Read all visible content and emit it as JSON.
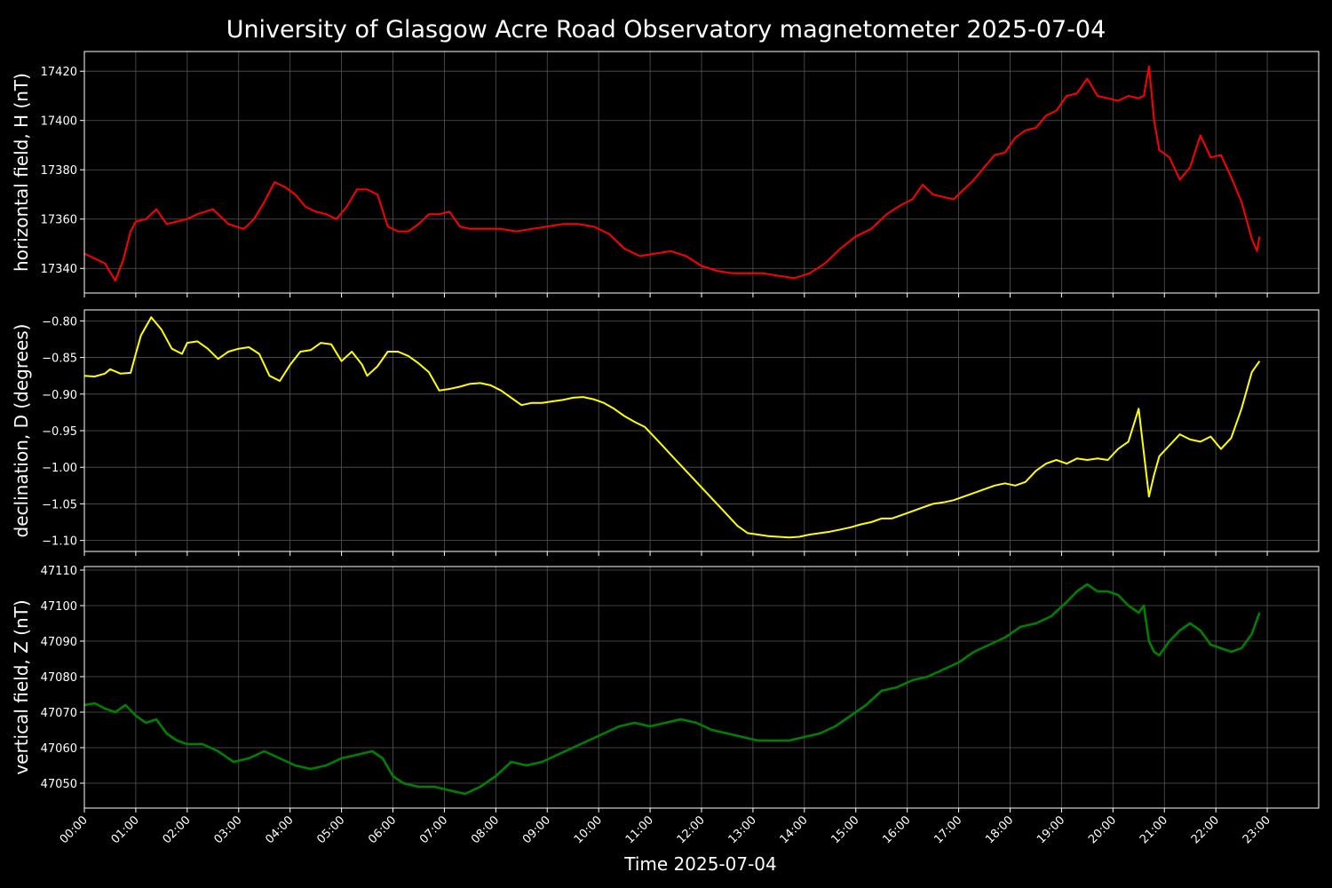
{
  "chart_data": {
    "type": "line",
    "title": "University of Glasgow Acre Road Observatory magnetometer 2025-07-04",
    "xlabel": "Time 2025-07-04",
    "x_unit": "hours",
    "xlim": [
      0,
      24
    ],
    "x_ticks": [
      "00:00",
      "01:00",
      "02:00",
      "03:00",
      "04:00",
      "05:00",
      "06:00",
      "07:00",
      "08:00",
      "09:00",
      "10:00",
      "11:00",
      "12:00",
      "13:00",
      "14:00",
      "15:00",
      "16:00",
      "17:00",
      "18:00",
      "19:00",
      "20:00",
      "21:00",
      "22:00",
      "23:00"
    ],
    "grid": true,
    "panels": [
      {
        "ylabel": "horizontal field, H (nT)",
        "color": "#ff0000",
        "ylim": [
          17330,
          17428
        ],
        "y_ticks": [
          17340,
          17360,
          17380,
          17400,
          17420
        ],
        "x": [
          0,
          0.2,
          0.4,
          0.6,
          0.75,
          0.9,
          1.0,
          1.2,
          1.4,
          1.6,
          1.8,
          2.0,
          2.2,
          2.5,
          2.8,
          3.1,
          3.3,
          3.5,
          3.7,
          3.9,
          4.1,
          4.3,
          4.5,
          4.7,
          4.9,
          5.1,
          5.3,
          5.5,
          5.7,
          5.9,
          6.1,
          6.3,
          6.5,
          6.7,
          6.9,
          7.1,
          7.3,
          7.5,
          7.7,
          7.9,
          8.1,
          8.4,
          8.7,
          9.0,
          9.3,
          9.6,
          9.9,
          10.2,
          10.5,
          10.8,
          11.1,
          11.4,
          11.7,
          12.0,
          12.3,
          12.6,
          12.9,
          13.2,
          13.5,
          13.8,
          14.1,
          14.4,
          14.7,
          15.0,
          15.3,
          15.6,
          15.9,
          16.1,
          16.3,
          16.5,
          16.7,
          16.9,
          17.1,
          17.3,
          17.5,
          17.7,
          17.9,
          18.1,
          18.3,
          18.5,
          18.7,
          18.9,
          19.1,
          19.3,
          19.5,
          19.7,
          19.9,
          20.1,
          20.3,
          20.5,
          20.6,
          20.7,
          20.8,
          20.9,
          21.1,
          21.3,
          21.5,
          21.7,
          21.9,
          22.1,
          22.3,
          22.5,
          22.7,
          22.8,
          22.85
        ],
        "values": [
          17346,
          17344,
          17342,
          17335,
          17343,
          17355,
          17359,
          17360,
          17364,
          17358,
          17359,
          17360,
          17362,
          17364,
          17358,
          17356,
          17360,
          17367,
          17375,
          17373,
          17370,
          17365,
          17363,
          17362,
          17360,
          17365,
          17372,
          17372,
          17370,
          17357,
          17355,
          17355,
          17358,
          17362,
          17362,
          17363,
          17357,
          17356,
          17356,
          17356,
          17356,
          17355,
          17356,
          17357,
          17358,
          17358,
          17357,
          17354,
          17348,
          17345,
          17346,
          17347,
          17345,
          17341,
          17339,
          17338,
          17338,
          17338,
          17337,
          17336,
          17338,
          17342,
          17348,
          17353,
          17356,
          17362,
          17366,
          17368,
          17374,
          17370,
          17369,
          17368,
          17372,
          17376,
          17381,
          17386,
          17387,
          17393,
          17396,
          17397,
          17402,
          17404,
          17410,
          17411,
          17417,
          17410,
          17409,
          17408,
          17410,
          17409,
          17410,
          17422,
          17400,
          17388,
          17385,
          17376,
          17381,
          17394,
          17385,
          17386,
          17377,
          17367,
          17352,
          17347,
          17353
        ]
      },
      {
        "ylabel": "declination, D (degrees)",
        "color": "#ffff00",
        "ylim": [
          -1.115,
          -0.785
        ],
        "y_ticks": [
          -1.1,
          -1.05,
          -1.0,
          -0.95,
          -0.9,
          -0.85,
          -0.8
        ],
        "y_tick_labels": [
          "−1.10",
          "−1.05",
          "−1.00",
          "−0.95",
          "−0.90",
          "−0.85",
          "−0.80"
        ],
        "x": [
          0,
          0.2,
          0.4,
          0.5,
          0.7,
          0.9,
          1.0,
          1.1,
          1.3,
          1.5,
          1.7,
          1.9,
          2.0,
          2.2,
          2.4,
          2.6,
          2.8,
          3.0,
          3.2,
          3.4,
          3.6,
          3.8,
          4.0,
          4.2,
          4.4,
          4.6,
          4.8,
          5.0,
          5.2,
          5.4,
          5.5,
          5.7,
          5.9,
          6.1,
          6.3,
          6.5,
          6.7,
          6.9,
          7.1,
          7.3,
          7.5,
          7.7,
          7.9,
          8.1,
          8.3,
          8.5,
          8.7,
          8.9,
          9.1,
          9.3,
          9.5,
          9.7,
          9.9,
          10.1,
          10.3,
          10.5,
          10.7,
          10.9,
          11.1,
          11.3,
          11.5,
          11.7,
          11.9,
          12.1,
          12.3,
          12.5,
          12.7,
          12.9,
          13.1,
          13.3,
          13.5,
          13.7,
          13.9,
          14.1,
          14.3,
          14.5,
          14.7,
          14.9,
          15.1,
          15.3,
          15.5,
          15.7,
          15.9,
          16.1,
          16.3,
          16.5,
          16.7,
          16.9,
          17.1,
          17.3,
          17.5,
          17.7,
          17.9,
          18.1,
          18.3,
          18.5,
          18.7,
          18.9,
          19.1,
          19.3,
          19.5,
          19.7,
          19.9,
          20.1,
          20.3,
          20.5,
          20.6,
          20.7,
          20.8,
          20.9,
          21.1,
          21.3,
          21.5,
          21.7,
          21.9,
          22.1,
          22.3,
          22.5,
          22.7,
          22.85
        ],
        "values": [
          -0.875,
          -0.876,
          -0.872,
          -0.866,
          -0.872,
          -0.871,
          -0.845,
          -0.82,
          -0.795,
          -0.812,
          -0.838,
          -0.845,
          -0.83,
          -0.828,
          -0.838,
          -0.852,
          -0.842,
          -0.838,
          -0.836,
          -0.845,
          -0.875,
          -0.882,
          -0.86,
          -0.842,
          -0.84,
          -0.83,
          -0.832,
          -0.855,
          -0.842,
          -0.86,
          -0.875,
          -0.862,
          -0.842,
          -0.842,
          -0.848,
          -0.858,
          -0.87,
          -0.895,
          -0.893,
          -0.89,
          -0.886,
          -0.885,
          -0.888,
          -0.895,
          -0.905,
          -0.915,
          -0.912,
          -0.912,
          -0.91,
          -0.908,
          -0.905,
          -0.904,
          -0.907,
          -0.912,
          -0.92,
          -0.93,
          -0.938,
          -0.945,
          -0.96,
          -0.975,
          -0.99,
          -1.005,
          -1.02,
          -1.035,
          -1.05,
          -1.065,
          -1.08,
          -1.09,
          -1.092,
          -1.094,
          -1.095,
          -1.096,
          -1.095,
          -1.092,
          -1.09,
          -1.088,
          -1.085,
          -1.082,
          -1.078,
          -1.075,
          -1.07,
          -1.07,
          -1.065,
          -1.06,
          -1.055,
          -1.05,
          -1.048,
          -1.045,
          -1.04,
          -1.035,
          -1.03,
          -1.025,
          -1.022,
          -1.025,
          -1.02,
          -1.005,
          -0.995,
          -0.99,
          -0.995,
          -0.988,
          -0.99,
          -0.988,
          -0.99,
          -0.975,
          -0.965,
          -0.92,
          -0.98,
          -1.04,
          -1.01,
          -0.985,
          -0.97,
          -0.955,
          -0.962,
          -0.965,
          -0.958,
          -0.975,
          -0.96,
          -0.92,
          -0.87,
          -0.855
        ]
      },
      {
        "ylabel": "vertical field, Z (nT)",
        "color": "#008000",
        "ylim": [
          47043,
          47111
        ],
        "y_ticks": [
          47050,
          47060,
          47070,
          47080,
          47090,
          47100,
          47110
        ],
        "x": [
          0,
          0.2,
          0.4,
          0.6,
          0.8,
          1.0,
          1.2,
          1.4,
          1.6,
          1.8,
          2.0,
          2.3,
          2.6,
          2.9,
          3.2,
          3.5,
          3.8,
          4.1,
          4.4,
          4.7,
          5.0,
          5.3,
          5.6,
          5.8,
          6.0,
          6.2,
          6.5,
          6.8,
          7.1,
          7.4,
          7.7,
          8.0,
          8.3,
          8.6,
          8.9,
          9.2,
          9.5,
          9.8,
          10.1,
          10.4,
          10.7,
          11.0,
          11.3,
          11.6,
          11.9,
          12.2,
          12.5,
          12.8,
          13.1,
          13.4,
          13.7,
          14.0,
          14.3,
          14.6,
          14.9,
          15.2,
          15.5,
          15.8,
          16.1,
          16.4,
          16.7,
          17.0,
          17.3,
          17.6,
          17.9,
          18.2,
          18.5,
          18.8,
          19.1,
          19.3,
          19.5,
          19.7,
          19.9,
          20.1,
          20.3,
          20.5,
          20.6,
          20.7,
          20.8,
          20.9,
          21.1,
          21.3,
          21.5,
          21.7,
          21.9,
          22.1,
          22.3,
          22.5,
          22.7,
          22.85
        ],
        "values": [
          47072,
          47072.5,
          47071,
          47070,
          47072,
          47069,
          47067,
          47068,
          47064,
          47062,
          47061,
          47061,
          47059,
          47056,
          47057,
          47059,
          47057,
          47055,
          47054,
          47055,
          47057,
          47058,
          47059,
          47057,
          47052,
          47050,
          47049,
          47049,
          47048,
          47047,
          47049,
          47052,
          47056,
          47055,
          47056,
          47058,
          47060,
          47062,
          47064,
          47066,
          47067,
          47066,
          47067,
          47068,
          47067,
          47065,
          47064,
          47063,
          47062,
          47062,
          47062,
          47063,
          47064,
          47066,
          47069,
          47072,
          47076,
          47077,
          47079,
          47080,
          47082,
          47084,
          47087,
          47089,
          47091,
          47094,
          47095,
          47097,
          47101,
          47104,
          47106,
          47104,
          47104,
          47103,
          47100,
          47098,
          47100,
          47090,
          47087,
          47086,
          47090,
          47093,
          47095,
          47093,
          47089,
          47088,
          47087,
          47088,
          47092,
          47098
        ]
      }
    ]
  }
}
